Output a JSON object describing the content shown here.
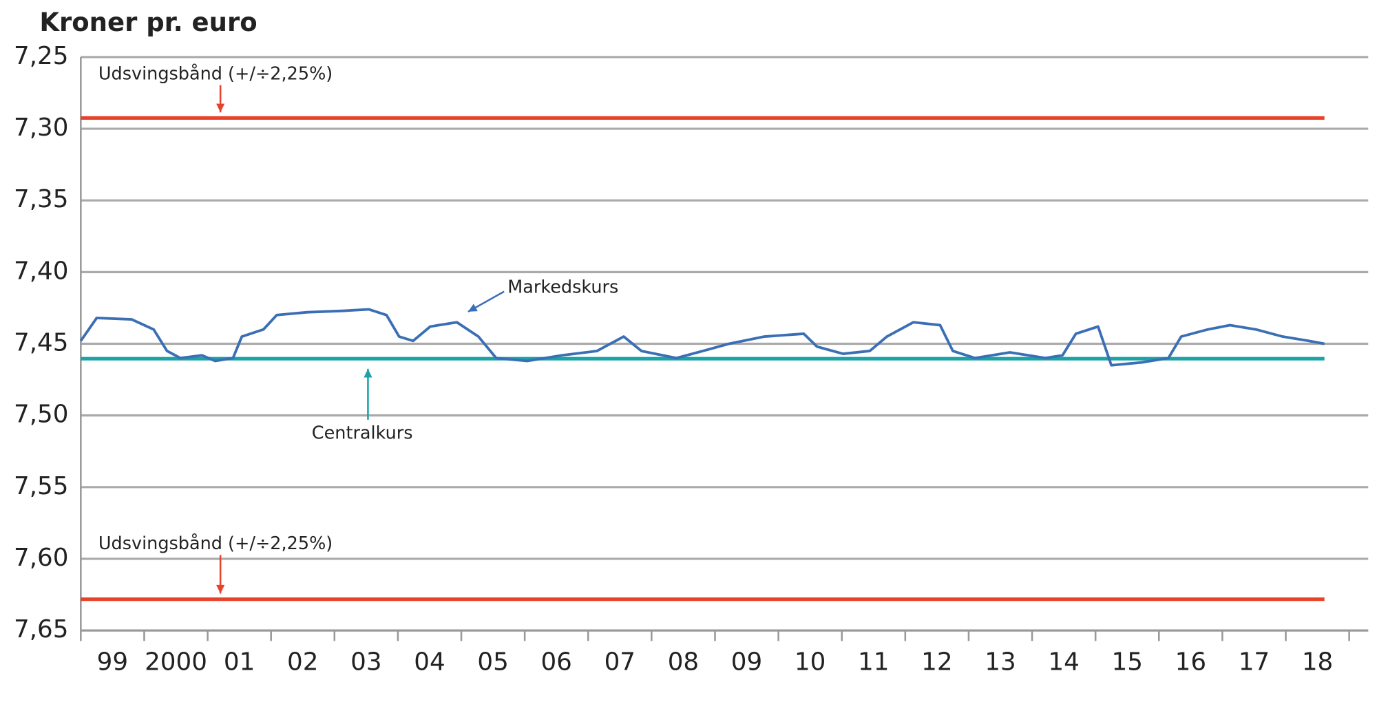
{
  "chart_data": {
    "type": "line",
    "title": "Kroner pr. euro",
    "x": [
      1999.0,
      1999.25,
      1999.8,
      2000.15,
      2000.36,
      2000.57,
      2000.91,
      2001.12,
      2001.4,
      2001.54,
      2001.88,
      2002.09,
      2002.57,
      2003.13,
      2003.54,
      2003.82,
      2004.02,
      2004.24,
      2004.51,
      2004.93,
      2005.27,
      2005.55,
      2006.04,
      2006.59,
      2007.14,
      2007.56,
      2007.84,
      2008.39,
      2008.81,
      2009.22,
      2009.78,
      2010.4,
      2010.61,
      2011.02,
      2011.44,
      2011.71,
      2012.13,
      2012.55,
      2012.75,
      2013.1,
      2013.65,
      2014.21,
      2014.48,
      2014.69,
      2015.04,
      2015.25,
      2015.73,
      2016.15,
      2016.35,
      2016.77,
      2017.12,
      2017.53,
      2017.95,
      2018.36,
      2018.61
    ],
    "series": [
      {
        "name": "Markedskurs",
        "color": "#3a6fb5",
        "values": [
          7.448,
          7.432,
          7.433,
          7.44,
          7.455,
          7.46,
          7.458,
          7.462,
          7.46,
          7.445,
          7.44,
          7.43,
          7.428,
          7.427,
          7.426,
          7.43,
          7.445,
          7.448,
          7.438,
          7.435,
          7.445,
          7.46,
          7.462,
          7.458,
          7.455,
          7.445,
          7.455,
          7.46,
          7.455,
          7.45,
          7.445,
          7.443,
          7.452,
          7.457,
          7.455,
          7.445,
          7.435,
          7.437,
          7.455,
          7.46,
          7.456,
          7.46,
          7.458,
          7.443,
          7.438,
          7.465,
          7.463,
          7.46,
          7.445,
          7.44,
          7.437,
          7.44,
          7.445,
          7.448,
          7.45
        ]
      }
    ],
    "reference_lines": [
      {
        "name": "Udsvingsbånd øvre",
        "value": 7.2925,
        "color": "#e8432a"
      },
      {
        "name": "Centralkurs",
        "value": 7.4604,
        "color": "#1ba3a6"
      },
      {
        "name": "Udsvingsbånd nedre",
        "value": 7.6282,
        "color": "#e8432a"
      }
    ],
    "annotations": [
      {
        "text": "Udsvingsbånd (+/÷2,25%)"
      },
      {
        "text": "Markedskurs"
      },
      {
        "text": "Centralkurs"
      },
      {
        "text": "Udsvingsbånd (+/÷2,25%)"
      }
    ],
    "ylim": [
      7.25,
      7.65
    ],
    "y_inverted": true,
    "yticks": [
      {
        "value": 7.25,
        "label": "7,25"
      },
      {
        "value": 7.3,
        "label": "7,30"
      },
      {
        "value": 7.35,
        "label": "7,35"
      },
      {
        "value": 7.4,
        "label": "7,40"
      },
      {
        "value": 7.45,
        "label": "7,45"
      },
      {
        "value": 7.5,
        "label": "7,50"
      },
      {
        "value": 7.55,
        "label": "7,55"
      },
      {
        "value": 7.6,
        "label": "7,60"
      },
      {
        "value": 7.65,
        "label": "7,65"
      }
    ],
    "xlim": [
      1999,
      2019.3
    ],
    "xticks": [
      {
        "value": 1999.5,
        "label": "99"
      },
      {
        "value": 2000.5,
        "label": "2000"
      },
      {
        "value": 2001.5,
        "label": "01"
      },
      {
        "value": 2002.5,
        "label": "02"
      },
      {
        "value": 2003.5,
        "label": "03"
      },
      {
        "value": 2004.5,
        "label": "04"
      },
      {
        "value": 2005.5,
        "label": "05"
      },
      {
        "value": 2006.5,
        "label": "06"
      },
      {
        "value": 2007.5,
        "label": "07"
      },
      {
        "value": 2008.5,
        "label": "08"
      },
      {
        "value": 2009.5,
        "label": "09"
      },
      {
        "value": 2010.5,
        "label": "10"
      },
      {
        "value": 2011.5,
        "label": "11"
      },
      {
        "value": 2012.5,
        "label": "12"
      },
      {
        "value": 2013.5,
        "label": "13"
      },
      {
        "value": 2014.5,
        "label": "14"
      },
      {
        "value": 2015.5,
        "label": "15"
      },
      {
        "value": 2016.5,
        "label": "16"
      },
      {
        "value": 2017.5,
        "label": "17"
      },
      {
        "value": 2018.5,
        "label": "18"
      }
    ],
    "grid": true
  }
}
